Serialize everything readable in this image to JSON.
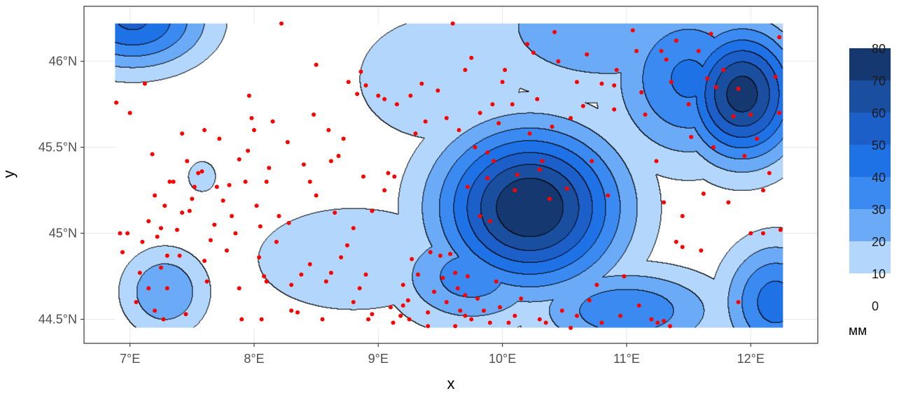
{
  "chart_data": {
    "type": "heatmap",
    "xlabel": "x",
    "ylabel": "y",
    "xlim": [
      6.63,
      12.54
    ],
    "ylim": [
      44.36,
      46.32
    ],
    "x_ticks": [
      {
        "value": 7,
        "label": "7°E"
      },
      {
        "value": 8,
        "label": "8°E"
      },
      {
        "value": 9,
        "label": "9°E"
      },
      {
        "value": 10,
        "label": "10°E"
      },
      {
        "value": 11,
        "label": "11°E"
      },
      {
        "value": 12,
        "label": "12°E"
      }
    ],
    "y_ticks": [
      {
        "value": 44.5,
        "label": "44.5°N"
      },
      {
        "value": 45.0,
        "label": "45°N"
      },
      {
        "value": 45.5,
        "label": "45.5°N"
      },
      {
        "value": 46.0,
        "label": "46°N"
      }
    ],
    "grid": true,
    "raster_extent": {
      "x": [
        6.88,
        12.26
      ],
      "y": [
        44.45,
        46.22
      ]
    },
    "legend": {
      "title": "мм",
      "placement": "right",
      "labels": [
        "80",
        "70",
        "60",
        "50",
        "40",
        "30",
        "20",
        "10",
        "0"
      ],
      "levels": [
        {
          "from": 70,
          "to": 80,
          "color": "#14386f"
        },
        {
          "from": 60,
          "to": 70,
          "color": "#1a4fa0"
        },
        {
          "from": 50,
          "to": 60,
          "color": "#1c5fc9"
        },
        {
          "from": 40,
          "to": 50,
          "color": "#1f72e6"
        },
        {
          "from": 30,
          "to": 40,
          "color": "#3a8af2"
        },
        {
          "from": 20,
          "to": 30,
          "color": "#6aaaf7"
        },
        {
          "from": 10,
          "to": 20,
          "color": "#b3d6fc"
        },
        {
          "from": 0,
          "to": 10,
          "color": "#ffffff"
        }
      ]
    },
    "point_color": "#ff0000",
    "field_centers": [
      {
        "x": 10.22,
        "y": 45.15,
        "value": 80,
        "sx": 0.52,
        "sy": 0.33
      },
      {
        "x": 11.93,
        "y": 45.81,
        "value": 75,
        "sx": 0.33,
        "sy": 0.28
      },
      {
        "x": 7.02,
        "y": 46.24,
        "value": 52,
        "sx": 0.42,
        "sy": 0.2
      },
      {
        "x": 7.28,
        "y": 44.66,
        "value": 30,
        "sx": 0.25,
        "sy": 0.18
      },
      {
        "x": 7.58,
        "y": 45.33,
        "value": 18,
        "sx": 0.1,
        "sy": 0.08
      },
      {
        "x": 12.2,
        "y": 44.6,
        "value": 45,
        "sx": 0.3,
        "sy": 0.25
      },
      {
        "x": 11.0,
        "y": 44.55,
        "value": 38,
        "sx": 0.55,
        "sy": 0.18
      },
      {
        "x": 10.85,
        "y": 46.2,
        "value": 30,
        "sx": 0.8,
        "sy": 0.3
      },
      {
        "x": 9.75,
        "y": 44.75,
        "value": 35,
        "sx": 0.45,
        "sy": 0.22
      },
      {
        "x": 9.5,
        "y": 45.9,
        "value": 20,
        "sx": 0.55,
        "sy": 0.3
      },
      {
        "x": 8.8,
        "y": 44.85,
        "value": 20,
        "sx": 0.65,
        "sy": 0.25
      },
      {
        "x": 11.5,
        "y": 45.9,
        "value": 42,
        "sx": 0.45,
        "sy": 0.35
      }
    ],
    "stations": [
      [
        6.89,
        45.76
      ],
      [
        6.92,
        45.0
      ],
      [
        6.94,
        44.89
      ],
      [
        6.98,
        45.0
      ],
      [
        7.0,
        45.7
      ],
      [
        7.05,
        44.6
      ],
      [
        7.08,
        44.77
      ],
      [
        7.12,
        45.87
      ],
      [
        7.18,
        45.46
      ],
      [
        7.15,
        44.68
      ],
      [
        7.2,
        44.55
      ],
      [
        7.25,
        44.8
      ],
      [
        7.27,
        44.5
      ],
      [
        7.3,
        44.68
      ],
      [
        7.3,
        44.87
      ],
      [
        7.35,
        45.3
      ],
      [
        7.4,
        44.87
      ],
      [
        7.45,
        44.53
      ],
      [
        7.42,
        45.58
      ],
      [
        7.46,
        45.42
      ],
      [
        7.52,
        45.27
      ],
      [
        7.58,
        45.36
      ],
      [
        7.6,
        45.6
      ],
      [
        7.62,
        44.72
      ],
      [
        7.7,
        45.27
      ],
      [
        7.72,
        45.55
      ],
      [
        7.78,
        44.9
      ],
      [
        7.82,
        45.1
      ],
      [
        7.85,
        45.0
      ],
      [
        7.88,
        44.68
      ],
      [
        7.9,
        44.5
      ],
      [
        7.93,
        45.3
      ],
      [
        7.96,
        45.8
      ],
      [
        7.98,
        45.67
      ],
      [
        8.0,
        45.6
      ],
      [
        8.02,
        45.16
      ],
      [
        8.04,
        44.86
      ],
      [
        8.06,
        44.5
      ],
      [
        8.08,
        44.75
      ],
      [
        8.1,
        44.72
      ],
      [
        8.12,
        45.38
      ],
      [
        8.15,
        45.65
      ],
      [
        8.22,
        46.22
      ],
      [
        8.27,
        45.53
      ],
      [
        8.28,
        45.06
      ],
      [
        8.3,
        44.55
      ],
      [
        8.35,
        44.54
      ],
      [
        8.4,
        45.4
      ],
      [
        8.45,
        45.3
      ],
      [
        8.48,
        45.69
      ],
      [
        8.5,
        45.98
      ],
      [
        8.55,
        44.5
      ],
      [
        8.6,
        45.6
      ],
      [
        8.62,
        45.42
      ],
      [
        8.65,
        45.12
      ],
      [
        8.72,
        45.55
      ],
      [
        8.76,
        45.88
      ],
      [
        8.8,
        44.6
      ],
      [
        8.83,
        45.81
      ],
      [
        8.86,
        45.94
      ],
      [
        8.88,
        45.33
      ],
      [
        8.9,
        45.86
      ],
      [
        8.92,
        44.5
      ],
      [
        8.95,
        44.53
      ],
      [
        9.0,
        45.8
      ],
      [
        9.05,
        45.78
      ],
      [
        9.1,
        44.57
      ],
      [
        9.12,
        44.48
      ],
      [
        9.15,
        45.75
      ],
      [
        9.2,
        44.7
      ],
      [
        9.24,
        44.61
      ],
      [
        9.26,
        45.8
      ],
      [
        9.32,
        44.76
      ],
      [
        9.38,
        45.65
      ],
      [
        9.4,
        44.54
      ],
      [
        9.42,
        44.89
      ],
      [
        9.45,
        44.66
      ],
      [
        9.5,
        44.87
      ],
      [
        9.52,
        44.74
      ],
      [
        9.55,
        44.6
      ],
      [
        9.6,
        46.22
      ],
      [
        9.62,
        44.77
      ],
      [
        9.65,
        45.6
      ],
      [
        9.66,
        44.55
      ],
      [
        9.7,
        45.95
      ],
      [
        9.72,
        44.75
      ],
      [
        9.75,
        46.02
      ],
      [
        9.78,
        45.5
      ],
      [
        9.8,
        44.62
      ],
      [
        9.82,
        45.7
      ],
      [
        9.85,
        44.55
      ],
      [
        9.88,
        45.47
      ],
      [
        9.9,
        45.07
      ],
      [
        9.92,
        45.75
      ],
      [
        9.95,
        44.72
      ],
      [
        9.98,
        44.57
      ],
      [
        10.0,
        45.88
      ],
      [
        10.02,
        45.95
      ],
      [
        10.05,
        44.48
      ],
      [
        10.08,
        45.75
      ],
      [
        10.12,
        45.34
      ],
      [
        10.15,
        44.62
      ],
      [
        10.2,
        46.1
      ],
      [
        10.22,
        45.58
      ],
      [
        10.25,
        46.05
      ],
      [
        10.28,
        45.78
      ],
      [
        10.32,
        45.42
      ],
      [
        10.35,
        44.48
      ],
      [
        10.38,
        45.2
      ],
      [
        10.42,
        46.17
      ],
      [
        10.45,
        46.0
      ],
      [
        10.48,
        44.55
      ],
      [
        10.52,
        45.26
      ],
      [
        10.55,
        45.67
      ],
      [
        10.6,
        44.52
      ],
      [
        10.65,
        45.74
      ],
      [
        10.68,
        46.04
      ],
      [
        10.7,
        44.61
      ],
      [
        10.72,
        45.42
      ],
      [
        10.76,
        44.7
      ],
      [
        10.8,
        45.87
      ],
      [
        10.85,
        45.22
      ],
      [
        10.9,
        45.72
      ],
      [
        10.92,
        45.95
      ],
      [
        10.98,
        44.75
      ],
      [
        11.05,
        46.18
      ],
      [
        11.08,
        46.06
      ],
      [
        11.12,
        45.82
      ],
      [
        11.15,
        45.69
      ],
      [
        11.2,
        44.5
      ],
      [
        11.24,
        45.42
      ],
      [
        11.28,
        46.06
      ],
      [
        11.3,
        45.18
      ],
      [
        11.32,
        46.01
      ],
      [
        11.36,
        45.88
      ],
      [
        11.4,
        46.12
      ],
      [
        11.45,
        44.92
      ],
      [
        11.5,
        45.75
      ],
      [
        11.52,
        45.56
      ],
      [
        11.58,
        46.06
      ],
      [
        11.62,
        45.23
      ],
      [
        11.65,
        45.9
      ],
      [
        11.68,
        46.16
      ],
      [
        11.72,
        45.85
      ],
      [
        11.78,
        45.95
      ],
      [
        11.82,
        45.18
      ],
      [
        11.86,
        45.68
      ],
      [
        11.9,
        45.84
      ],
      [
        12.0,
        45.69
      ],
      [
        12.05,
        45.55
      ],
      [
        12.1,
        45.0
      ],
      [
        12.15,
        45.35
      ],
      [
        12.2,
        45.91
      ],
      [
        12.23,
        46.14
      ],
      [
        12.24,
        45.02
      ],
      [
        12.0,
        45.0
      ],
      [
        11.9,
        44.6
      ],
      [
        11.6,
        44.9
      ],
      [
        11.35,
        44.46
      ],
      [
        11.3,
        44.49
      ],
      [
        11.25,
        44.48
      ],
      [
        10.9,
        45.86
      ],
      [
        10.6,
        45.88
      ],
      [
        10.4,
        45.62
      ],
      [
        10.3,
        45.37
      ],
      [
        10.1,
        45.25
      ],
      [
        9.97,
        45.64
      ],
      [
        9.93,
        45.42
      ],
      [
        9.88,
        45.32
      ],
      [
        9.82,
        45.1
      ],
      [
        9.72,
        45.27
      ],
      [
        9.7,
        44.64
      ],
      [
        9.64,
        44.68
      ],
      [
        9.58,
        44.88
      ],
      [
        9.55,
        45.67
      ],
      [
        9.48,
        45.83
      ],
      [
        9.35,
        45.87
      ],
      [
        9.3,
        45.58
      ],
      [
        9.27,
        44.85
      ],
      [
        9.2,
        44.58
      ],
      [
        9.13,
        45.33
      ],
      [
        9.08,
        45.35
      ],
      [
        9.05,
        45.25
      ],
      [
        8.95,
        45.13
      ],
      [
        8.9,
        44.76
      ],
      [
        8.85,
        44.68
      ],
      [
        8.8,
        45.03
      ],
      [
        8.75,
        44.93
      ],
      [
        8.7,
        44.86
      ],
      [
        8.68,
        45.45
      ],
      [
        8.62,
        44.77
      ],
      [
        8.58,
        44.72
      ],
      [
        8.5,
        45.22
      ],
      [
        8.45,
        44.82
      ],
      [
        8.38,
        44.76
      ],
      [
        8.3,
        44.7
      ],
      [
        8.2,
        45.1
      ],
      [
        8.18,
        44.95
      ],
      [
        8.1,
        45.3
      ],
      [
        8.05,
        45.04
      ],
      [
        7.95,
        45.48
      ],
      [
        7.88,
        45.43
      ],
      [
        7.8,
        45.28
      ],
      [
        7.75,
        45.19
      ],
      [
        7.68,
        45.05
      ],
      [
        7.65,
        44.96
      ],
      [
        7.6,
        44.84
      ],
      [
        7.55,
        45.35
      ],
      [
        7.5,
        45.2
      ],
      [
        7.48,
        45.13
      ],
      [
        7.42,
        45.12
      ],
      [
        7.38,
        45.02
      ],
      [
        7.32,
        45.3
      ],
      [
        7.28,
        45.16
      ],
      [
        7.25,
        45.03
      ],
      [
        7.22,
        44.98
      ],
      [
        7.2,
        45.22
      ],
      [
        7.15,
        45.07
      ],
      [
        7.1,
        44.95
      ],
      [
        12.23,
        45.7
      ],
      [
        12.1,
        45.25
      ],
      [
        11.95,
        45.45
      ],
      [
        11.7,
        45.5
      ],
      [
        11.45,
        45.1
      ],
      [
        11.4,
        44.95
      ],
      [
        11.1,
        44.58
      ],
      [
        10.95,
        44.52
      ],
      [
        10.8,
        44.48
      ],
      [
        10.55,
        44.45
      ],
      [
        10.3,
        44.5
      ],
      [
        10.1,
        44.52
      ],
      [
        9.9,
        44.48
      ],
      [
        9.75,
        44.5
      ],
      [
        9.7,
        44.52
      ],
      [
        9.62,
        44.46
      ],
      [
        9.4,
        44.46
      ],
      [
        9.25,
        44.5
      ],
      [
        9.18,
        44.52
      ]
    ]
  }
}
